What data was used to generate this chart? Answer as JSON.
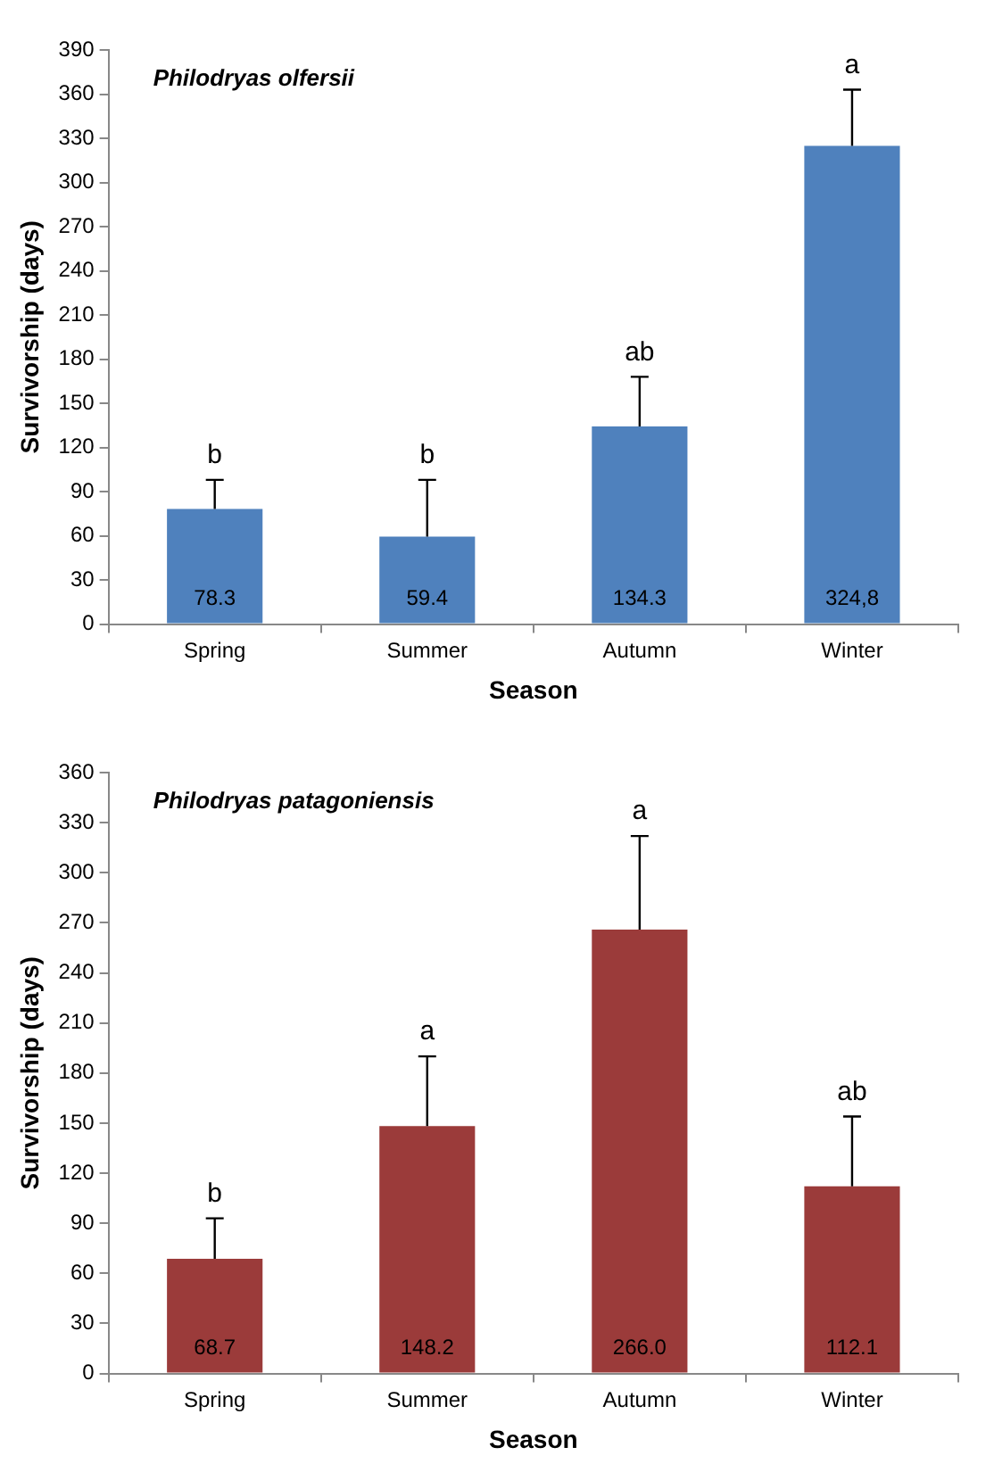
{
  "chart_data": [
    {
      "type": "bar",
      "title": "Philodryas olfersii",
      "xlabel": "Season",
      "ylabel": "Survivorship (days)",
      "categories": [
        "Spring",
        "Summer",
        "Autumn",
        "Winter"
      ],
      "values": [
        78.3,
        59.4,
        134.3,
        324.8
      ],
      "color": "#4f81bd",
      "errors": [
        [
          78.3,
          98
        ],
        [
          59.4,
          98
        ],
        [
          134.3,
          168
        ],
        [
          324.8,
          363
        ]
      ],
      "value_labels": [
        "78.3",
        "59.4",
        "134.3",
        "324,8"
      ],
      "ylim": [
        0,
        390
      ],
      "yticks": [
        0,
        30,
        60,
        90,
        120,
        150,
        180,
        210,
        240,
        270,
        300,
        330,
        360,
        390
      ],
      "grid": false,
      "legend": false,
      "annotations": [
        {
          "text": "b",
          "x": "Spring",
          "y": 98
        },
        {
          "text": "b",
          "x": "Summer",
          "y": 98
        },
        {
          "text": "ab",
          "x": "Autumn",
          "y": 168
        },
        {
          "text": "a",
          "x": "Winter",
          "y": 363
        }
      ]
    },
    {
      "type": "bar",
      "title": "Philodryas patagoniensis",
      "xlabel": "Season",
      "ylabel": "Survivorship (days)",
      "categories": [
        "Spring",
        "Summer",
        "Autumn",
        "Winter"
      ],
      "values": [
        68.7,
        148.2,
        266.0,
        112.1
      ],
      "color": "#9b3b3a",
      "errors": [
        [
          68.7,
          93
        ],
        [
          148.2,
          190
        ],
        [
          266.0,
          322
        ],
        [
          112.1,
          154
        ]
      ],
      "value_labels": [
        "68.7",
        "148.2",
        "266.0",
        "112.1"
      ],
      "ylim": [
        0,
        360
      ],
      "yticks": [
        0,
        30,
        60,
        90,
        120,
        150,
        180,
        210,
        240,
        270,
        300,
        330,
        360
      ],
      "grid": false,
      "legend": false,
      "annotations": [
        {
          "text": "b",
          "x": "Spring",
          "y": 93
        },
        {
          "text": "a",
          "x": "Summer",
          "y": 190
        },
        {
          "text": "a",
          "x": "Autumn",
          "y": 322
        },
        {
          "text": "ab",
          "x": "Winter",
          "y": 154
        }
      ]
    }
  ]
}
